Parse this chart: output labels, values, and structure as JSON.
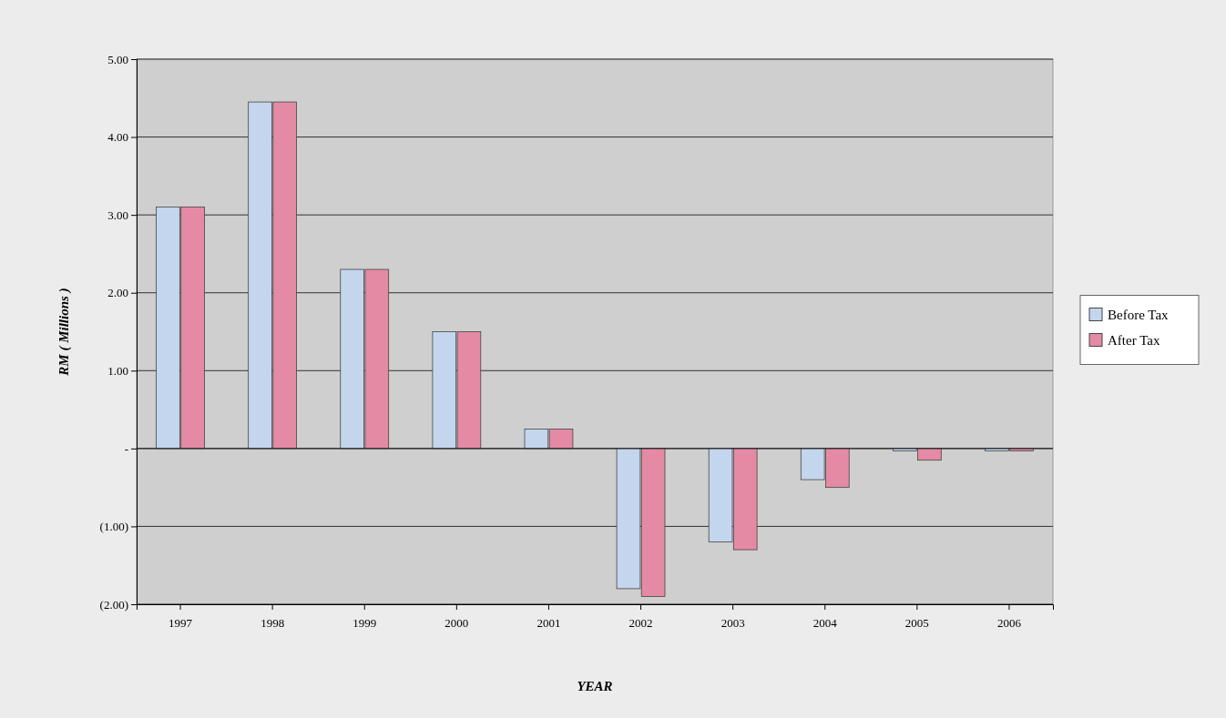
{
  "chart_data": {
    "type": "bar",
    "xlabel": "YEAR",
    "ylabel": "RM ( Millions )",
    "categories": [
      "1997",
      "1998",
      "1999",
      "2000",
      "2001",
      "2002",
      "2003",
      "2004",
      "2005",
      "2006"
    ],
    "series": [
      {
        "name": "Before Tax",
        "color": "#c3d6ee",
        "values": [
          3.1,
          4.45,
          2.3,
          1.5,
          0.25,
          -1.8,
          -1.2,
          -0.4,
          -0.03,
          -0.03
        ]
      },
      {
        "name": "After Tax",
        "color": "#e48aa5",
        "values": [
          3.1,
          4.45,
          2.3,
          1.5,
          0.25,
          -1.9,
          -1.3,
          -0.5,
          -0.15,
          -0.03
        ]
      }
    ],
    "ylim": [
      -2,
      5
    ],
    "yticks": [
      {
        "value": -2,
        "label": "(2.00)"
      },
      {
        "value": -1,
        "label": "(1.00)"
      },
      {
        "value": 0,
        "label": "-"
      },
      {
        "value": 1,
        "label": "1.00"
      },
      {
        "value": 2,
        "label": "2.00"
      },
      {
        "value": 3,
        "label": "3.00"
      },
      {
        "value": 4,
        "label": "4.00"
      },
      {
        "value": 5,
        "label": "5.00"
      }
    ],
    "grid": "y",
    "legend": "right"
  }
}
